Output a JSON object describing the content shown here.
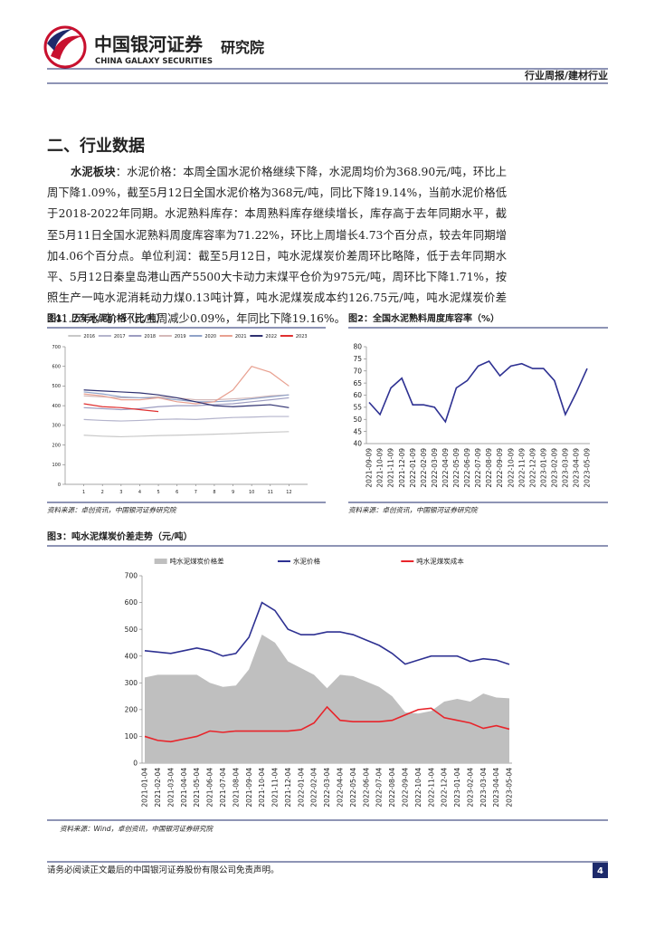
{
  "header": {
    "brand": "中国银河证券",
    "brand_en": "CHINA GALAXY SECURITIES",
    "unit": "研究院",
    "report_type": "行业周报/建材行业"
  },
  "section_title": "二、行业数据",
  "paragraph": {
    "lead": "水泥板块",
    "body": "：水泥价格：本周全国水泥价格继续下降，水泥周均价为368.90元/吨，环比上周下降1.09%，截至5月12日全国水泥价格为368元/吨，同比下降19.14%，当前水泥价格低于2018-2022年同期。水泥熟料库存：本周熟料库存继续增长，库存高于去年同期水平，截至5月11日全国水泥熟料周度库容率为71.22%，环比上周增长4.73个百分点，较去年同期增加4.06个百分点。单位利润：截至5月12日，吨水泥煤炭价差周环比略降，低于去年同期水平、5月12日秦皇岛港山西产5500大卡动力末煤平仓价为975元/吨，周环比下降1.71%，按照生产一吨水泥消耗动力煤0.13吨计算，吨水泥煤炭成本约126.75元/吨，吨水泥煤炭价差241.25元/吨，环比上周减少0.09%，年同比下降19.16%。"
  },
  "figures": [
    {
      "title": "图1：历年水泥价格（元/吨）",
      "source": "资料来源：卓创资讯，中国银河证券研究院",
      "chart": {
        "type": "line",
        "x": [
          1,
          2,
          3,
          4,
          5,
          6,
          7,
          8,
          9,
          10,
          11,
          12
        ],
        "xlim": [
          0,
          13
        ],
        "xticks": [
          1,
          2,
          3,
          4,
          5,
          6,
          7,
          8,
          9,
          10,
          11,
          12
        ],
        "ylim": [
          0,
          700
        ],
        "yticks": [
          0,
          100,
          200,
          300,
          400,
          500,
          600,
          700
        ],
        "series": [
          {
            "name": "2016",
            "color": "#c8c8c8",
            "values": [
              250,
              245,
              242,
              245,
              248,
              250,
              252,
              255,
              258,
              262,
              265,
              268
            ]
          },
          {
            "name": "2017",
            "color": "#b4b4cc",
            "values": [
              330,
              325,
              322,
              325,
              330,
              332,
              330,
              335,
              340,
              342,
              345,
              345
            ]
          },
          {
            "name": "2018",
            "color": "#9c9cc0",
            "values": [
              390,
              385,
              380,
              385,
              395,
              400,
              400,
              405,
              410,
              420,
              430,
              440
            ]
          },
          {
            "name": "2019",
            "color": "#d4b8b8",
            "values": [
              450,
              445,
              440,
              440,
              445,
              440,
              430,
              430,
              435,
              440,
              450,
              455
            ]
          },
          {
            "name": "2020",
            "color": "#8fa2c8",
            "values": [
              470,
              460,
              445,
              440,
              440,
              430,
              420,
              420,
              425,
              435,
              445,
              455
            ]
          },
          {
            "name": "2021",
            "color": "#e8a090",
            "values": [
              460,
              450,
              430,
              430,
              440,
              420,
              410,
              420,
              480,
              600,
              570,
              500
            ]
          },
          {
            "name": "2022",
            "color": "#2e3070",
            "values": [
              480,
              475,
              470,
              465,
              455,
              440,
              420,
              400,
              395,
              400,
              405,
              390
            ]
          },
          {
            "name": "2023",
            "color": "#e03030",
            "values": [
              410,
              395,
              390,
              380,
              370,
              null,
              null,
              null,
              null,
              null,
              null,
              null
            ]
          }
        ]
      }
    },
    {
      "title": "图2：全国水泥熟料周度库容率（%）",
      "source": "资料来源：卓创资讯，中国银河证券研究院",
      "chart": {
        "type": "line",
        "categories": [
          "2021-09-09",
          "2021-10-09",
          "2021-11-09",
          "2021-12-09",
          "2022-01-09",
          "2022-02-09",
          "2022-03-09",
          "2022-04-09",
          "2022-05-09",
          "2022-06-09",
          "2022-07-09",
          "2022-08-09",
          "2022-09-09",
          "2022-10-09",
          "2022-11-09",
          "2022-12-09",
          "2023-01-09",
          "2023-02-09",
          "2023-03-09",
          "2023-04-09",
          "2023-05-09"
        ],
        "values": [
          57,
          52,
          63,
          67,
          56,
          56,
          55,
          49,
          63,
          66,
          72,
          74,
          68,
          72,
          73,
          71,
          71,
          66,
          52,
          61,
          71
        ],
        "color": "#2e3192",
        "ylim": [
          40,
          80
        ],
        "yticks": [
          40,
          45,
          50,
          55,
          60,
          65,
          70,
          75,
          80
        ]
      }
    },
    {
      "title": "图3：吨水泥煤炭价差走势（元/吨）",
      "source": "资料来源：Wind，卓创资讯，中国银河证券研究院",
      "chart": {
        "type": "line",
        "categories": [
          "2021-01-04",
          "2021-02-04",
          "2021-03-04",
          "2021-04-04",
          "2021-05-04",
          "2021-06-04",
          "2021-07-04",
          "2021-08-04",
          "2021-09-04",
          "2021-10-04",
          "2021-11-04",
          "2021-12-04",
          "2022-01-04",
          "2022-02-04",
          "2022-03-04",
          "2022-04-04",
          "2022-05-04",
          "2022-06-04",
          "2022-07-04",
          "2022-08-04",
          "2022-09-04",
          "2022-10-04",
          "2022-11-04",
          "2022-12-04",
          "2023-01-04",
          "2023-02-04",
          "2023-03-04",
          "2023-04-04",
          "2023-05-04"
        ],
        "ylim": [
          0,
          700
        ],
        "yticks": [
          0,
          100,
          200,
          300,
          400,
          500,
          600,
          700
        ],
        "series": [
          {
            "name": "吨水泥煤炭价格差",
            "type": "area",
            "color": "#bfbfbf",
            "values": [
              320,
              330,
              330,
              330,
              330,
              300,
              285,
              290,
              350,
              480,
              450,
              380,
              355,
              330,
              280,
              330,
              325,
              305,
              285,
              250,
              190,
              185,
              195,
              230,
              240,
              230,
              260,
              245,
              242
            ]
          },
          {
            "name": "水泥价格",
            "color": "#2e3192",
            "values": [
              420,
              415,
              410,
              420,
              430,
              420,
              400,
              410,
              470,
              600,
              570,
              500,
              480,
              480,
              490,
              490,
              480,
              460,
              440,
              410,
              370,
              385,
              400,
              400,
              400,
              380,
              390,
              385,
              369
            ]
          },
          {
            "name": "吨水泥煤炭成本",
            "color": "#e8242a",
            "values": [
              100,
              85,
              80,
              90,
              100,
              120,
              115,
              120,
              120,
              120,
              120,
              120,
              125,
              150,
              210,
              160,
              155,
              155,
              155,
              160,
              180,
              200,
              205,
              170,
              160,
              150,
              130,
              140,
              127
            ]
          }
        ]
      }
    }
  ],
  "footer": {
    "disclaimer": "请务必阅读正文最后的中国银河证券股份有限公司免责声明。",
    "page": "4"
  }
}
